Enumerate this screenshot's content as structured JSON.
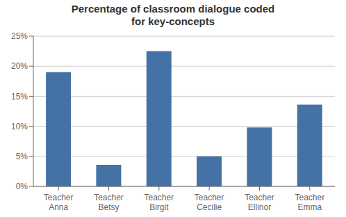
{
  "chart_data": {
    "type": "bar",
    "title": "Percentage of classroom dialogue coded\nfor key-concepts",
    "categories": [
      "Teacher\nAnna",
      "Teacher\nBetsy",
      "Teacher\nBirgit",
      "Teacher\nCecilie",
      "Teacher\nEllinor",
      "Teacher\nEmma"
    ],
    "values": [
      19.0,
      3.6,
      22.5,
      5.0,
      9.8,
      13.6
    ],
    "color": "#4472a4",
    "ylim": [
      0,
      25
    ],
    "yticks": [
      {
        "value": 0,
        "label": "0%"
      },
      {
        "value": 5,
        "label": "5%"
      },
      {
        "value": 10,
        "label": "10%"
      },
      {
        "value": 15,
        "label": "15%"
      },
      {
        "value": 20,
        "label": "20%"
      },
      {
        "value": 25,
        "label": "25%"
      }
    ],
    "grid": true
  }
}
